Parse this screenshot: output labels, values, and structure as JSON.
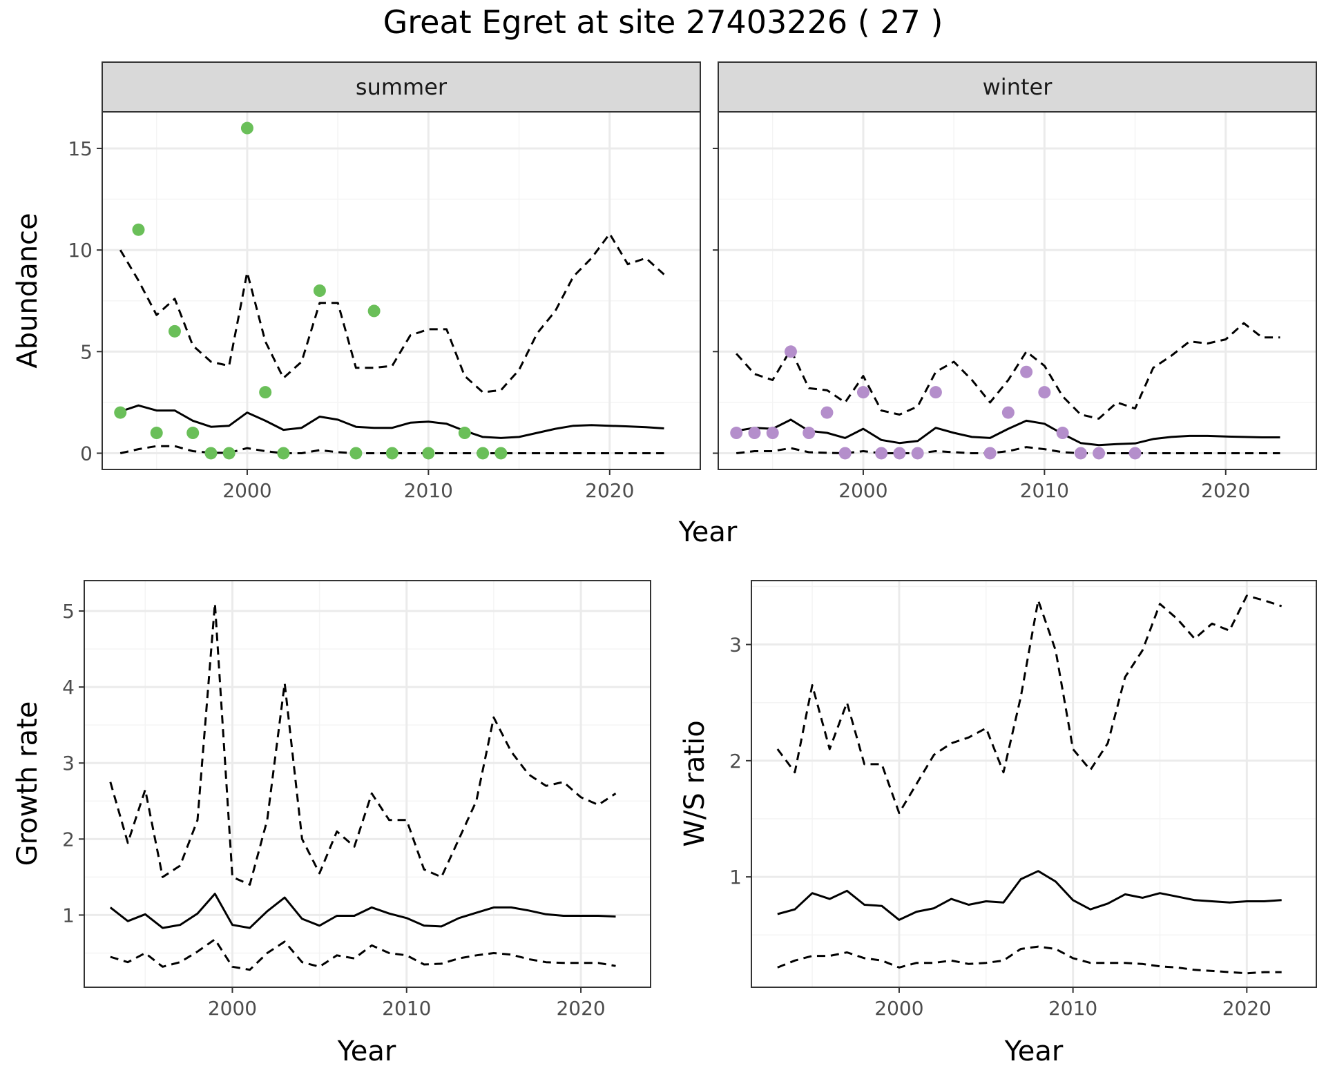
{
  "title": "Great Egret at site 27403226 ( 27 )",
  "colors": {
    "summer_points": "#6abf59",
    "winter_points": "#b48ecb",
    "lines": "#000000",
    "grid_major": "#ebebeb",
    "grid_minor": "#f4f4f4",
    "strip_fill": "#d9d9d9",
    "border": "#333333"
  },
  "chart_data": [
    {
      "type": "scatter",
      "panel": "summer",
      "strip_label": "summer",
      "xlabel": "Year",
      "ylabel": "Abundance",
      "xlim": [
        1992,
        2025
      ],
      "ylim": [
        -0.8,
        16.8
      ],
      "x_ticks": [
        2000,
        2010,
        2020
      ],
      "x_tick_labels": [
        "2000",
        "2010",
        "2020"
      ],
      "y_ticks": [
        0,
        5,
        10,
        15
      ],
      "y_tick_labels": [
        "0",
        "5",
        "10",
        "15"
      ],
      "grid": true,
      "points": {
        "x": [
          1993,
          1994,
          1995,
          1996,
          1997,
          1998,
          1999,
          2000,
          2001,
          2002,
          2004,
          2006,
          2007,
          2008,
          2010,
          2012,
          2013,
          2014
        ],
        "y": [
          2,
          11,
          1,
          6,
          1,
          0,
          0,
          16,
          3,
          0,
          8,
          0,
          7,
          0,
          0,
          1,
          0,
          0
        ]
      },
      "series": [
        {
          "style": "solid",
          "x": [
            1993,
            1994,
            1995,
            1996,
            1997,
            1998,
            1999,
            2000,
            2001,
            2002,
            2003,
            2004,
            2005,
            2006,
            2007,
            2008,
            2009,
            2010,
            2011,
            2012,
            2013,
            2014,
            2015,
            2016,
            2017,
            2018,
            2019,
            2020,
            2021,
            2022,
            2023
          ],
          "y": [
            2.05,
            2.35,
            2.1,
            2.1,
            1.6,
            1.3,
            1.35,
            2.0,
            1.6,
            1.15,
            1.25,
            1.8,
            1.65,
            1.3,
            1.25,
            1.25,
            1.5,
            1.55,
            1.45,
            1.1,
            0.8,
            0.75,
            0.8,
            1.0,
            1.2,
            1.35,
            1.38,
            1.35,
            1.32,
            1.28,
            1.22
          ]
        },
        {
          "style": "dashed",
          "x": [
            1993,
            1994,
            1995,
            1996,
            1997,
            1998,
            1999,
            2000,
            2001,
            2002,
            2003,
            2004,
            2005,
            2006,
            2007,
            2008,
            2009,
            2010,
            2011,
            2012,
            2013,
            2014,
            2015,
            2016,
            2017,
            2018,
            2019,
            2020,
            2021,
            2022,
            2023
          ],
          "y": [
            10.0,
            8.5,
            6.8,
            7.6,
            5.3,
            4.5,
            4.3,
            8.9,
            5.5,
            3.7,
            4.5,
            7.4,
            7.4,
            4.2,
            4.2,
            4.3,
            5.8,
            6.1,
            6.1,
            3.8,
            3.0,
            3.1,
            4.1,
            5.9,
            7.0,
            8.7,
            9.6,
            10.8,
            9.3,
            9.6,
            8.8
          ]
        },
        {
          "style": "dashed",
          "x": [
            1993,
            1994,
            1995,
            1996,
            1997,
            1998,
            1999,
            2000,
            2001,
            2002,
            2003,
            2004,
            2005,
            2006,
            2007,
            2008,
            2009,
            2010,
            2011,
            2012,
            2013,
            2014,
            2015,
            2016,
            2017,
            2018,
            2019,
            2020,
            2021,
            2022,
            2023
          ],
          "y": [
            0.0,
            0.2,
            0.35,
            0.35,
            0.1,
            0.02,
            0.02,
            0.25,
            0.1,
            0.0,
            0.0,
            0.15,
            0.05,
            0.0,
            0.0,
            0.0,
            0.0,
            0.0,
            0.0,
            0.0,
            0.0,
            0.0,
            0.0,
            0.0,
            0.0,
            0.0,
            0.0,
            0.0,
            0.0,
            0.0,
            0.0
          ]
        }
      ]
    },
    {
      "type": "scatter",
      "panel": "winter",
      "strip_label": "winter",
      "xlabel": "Year",
      "ylabel": "Abundance",
      "xlim": [
        1992,
        2025
      ],
      "ylim": [
        -0.8,
        16.8
      ],
      "x_ticks": [
        2000,
        2010,
        2020
      ],
      "x_tick_labels": [
        "2000",
        "2010",
        "2020"
      ],
      "y_ticks": [
        0,
        5,
        10,
        15
      ],
      "grid": true,
      "points": {
        "x": [
          1993,
          1994,
          1995,
          1996,
          1997,
          1998,
          1999,
          2000,
          2001,
          2002,
          2003,
          2004,
          2007,
          2008,
          2009,
          2010,
          2011,
          2012,
          2013,
          2015
        ],
        "y": [
          1,
          1,
          1,
          5,
          1,
          2,
          0,
          3,
          0,
          0,
          0,
          3,
          0,
          2,
          4,
          3,
          1,
          0,
          0,
          0
        ]
      },
      "series": [
        {
          "style": "solid",
          "x": [
            1993,
            1994,
            1995,
            1996,
            1997,
            1998,
            1999,
            2000,
            2001,
            2002,
            2003,
            2004,
            2005,
            2006,
            2007,
            2008,
            2009,
            2010,
            2011,
            2012,
            2013,
            2014,
            2015,
            2016,
            2017,
            2018,
            2019,
            2020,
            2021,
            2022,
            2023
          ],
          "y": [
            1.1,
            1.25,
            1.2,
            1.65,
            1.1,
            1.0,
            0.75,
            1.2,
            0.65,
            0.5,
            0.6,
            1.25,
            1.0,
            0.8,
            0.75,
            1.2,
            1.6,
            1.45,
            0.95,
            0.5,
            0.4,
            0.45,
            0.48,
            0.7,
            0.8,
            0.85,
            0.85,
            0.82,
            0.8,
            0.78,
            0.78
          ]
        },
        {
          "style": "dashed",
          "x": [
            1993,
            1994,
            1995,
            1996,
            1997,
            1998,
            1999,
            2000,
            2001,
            2002,
            2003,
            2004,
            2005,
            2006,
            2007,
            2008,
            2009,
            2010,
            2011,
            2012,
            2013,
            2014,
            2015,
            2016,
            2017,
            2018,
            2019,
            2020,
            2021,
            2022,
            2023
          ],
          "y": [
            4.9,
            3.9,
            3.6,
            5.1,
            3.2,
            3.1,
            2.5,
            3.8,
            2.1,
            1.9,
            2.3,
            4.0,
            4.5,
            3.6,
            2.5,
            3.6,
            5.0,
            4.3,
            2.8,
            1.9,
            1.7,
            2.5,
            2.2,
            4.2,
            4.8,
            5.5,
            5.4,
            5.6,
            6.4,
            5.7,
            5.7
          ]
        },
        {
          "style": "dashed",
          "x": [
            1993,
            1994,
            1995,
            1996,
            1997,
            1998,
            1999,
            2000,
            2001,
            2002,
            2003,
            2004,
            2005,
            2006,
            2007,
            2008,
            2009,
            2010,
            2011,
            2012,
            2013,
            2014,
            2015,
            2016,
            2017,
            2018,
            2019,
            2020,
            2021,
            2022,
            2023
          ],
          "y": [
            0.0,
            0.1,
            0.1,
            0.25,
            0.05,
            0.02,
            0.0,
            0.1,
            0.0,
            0.0,
            0.0,
            0.1,
            0.05,
            0.0,
            0.0,
            0.1,
            0.3,
            0.2,
            0.05,
            0.0,
            0.0,
            0.0,
            0.0,
            0.0,
            0.0,
            0.0,
            0.0,
            0.0,
            0.0,
            0.0,
            0.0
          ]
        }
      ]
    },
    {
      "type": "line",
      "panel": "growth",
      "xlabel": "Year",
      "ylabel": "Growth rate",
      "xlim": [
        1991.5,
        2024
      ],
      "ylim": [
        0.05,
        5.4
      ],
      "x_ticks": [
        2000,
        2010,
        2020
      ],
      "x_tick_labels": [
        "2000",
        "2010",
        "2020"
      ],
      "y_ticks": [
        1,
        2,
        3,
        4,
        5
      ],
      "y_tick_labels": [
        "1",
        "2",
        "3",
        "4",
        "5"
      ],
      "grid": true,
      "series": [
        {
          "style": "solid",
          "x": [
            1993,
            1994,
            1995,
            1996,
            1997,
            1998,
            1999,
            2000,
            2001,
            2002,
            2003,
            2004,
            2005,
            2006,
            2007,
            2008,
            2009,
            2010,
            2011,
            2012,
            2013,
            2014,
            2015,
            2016,
            2017,
            2018,
            2019,
            2020,
            2021,
            2022
          ],
          "y": [
            1.1,
            0.92,
            1.01,
            0.83,
            0.87,
            1.02,
            1.28,
            0.87,
            0.83,
            1.05,
            1.23,
            0.95,
            0.86,
            0.99,
            0.99,
            1.1,
            1.02,
            0.96,
            0.86,
            0.85,
            0.96,
            1.03,
            1.1,
            1.1,
            1.06,
            1.01,
            0.99,
            0.99,
            0.99,
            0.98
          ]
        },
        {
          "style": "dashed",
          "x": [
            1993,
            1994,
            1995,
            1996,
            1997,
            1998,
            1999,
            2000,
            2001,
            2002,
            2003,
            2004,
            2005,
            2006,
            2007,
            2008,
            2009,
            2010,
            2011,
            2012,
            2013,
            2014,
            2015,
            2016,
            2017,
            2018,
            2019,
            2020,
            2021,
            2022
          ],
          "y": [
            2.75,
            1.95,
            2.65,
            1.5,
            1.65,
            2.25,
            5.1,
            1.5,
            1.4,
            2.25,
            4.05,
            2.0,
            1.55,
            2.1,
            1.9,
            2.6,
            2.25,
            2.25,
            1.6,
            1.5,
            2.0,
            2.5,
            3.6,
            3.15,
            2.85,
            2.7,
            2.75,
            2.55,
            2.45,
            2.6
          ]
        },
        {
          "style": "dashed",
          "x": [
            1993,
            1994,
            1995,
            1996,
            1997,
            1998,
            1999,
            2000,
            2001,
            2002,
            2003,
            2004,
            2005,
            2006,
            2007,
            2008,
            2009,
            2010,
            2011,
            2012,
            2013,
            2014,
            2015,
            2016,
            2017,
            2018,
            2019,
            2020,
            2021,
            2022
          ],
          "y": [
            0.45,
            0.38,
            0.5,
            0.32,
            0.38,
            0.52,
            0.68,
            0.32,
            0.28,
            0.5,
            0.65,
            0.38,
            0.32,
            0.47,
            0.43,
            0.6,
            0.5,
            0.47,
            0.35,
            0.36,
            0.43,
            0.47,
            0.5,
            0.48,
            0.42,
            0.38,
            0.37,
            0.37,
            0.37,
            0.33
          ]
        }
      ]
    },
    {
      "type": "line",
      "panel": "ratio",
      "xlabel": "Year",
      "ylabel": "W/S ratio",
      "xlim": [
        1991.5,
        2024
      ],
      "ylim": [
        0.05,
        3.55
      ],
      "x_ticks": [
        2000,
        2010,
        2020
      ],
      "x_tick_labels": [
        "2000",
        "2010",
        "2020"
      ],
      "y_ticks": [
        1,
        2,
        3
      ],
      "y_tick_labels": [
        "1",
        "2",
        "3"
      ],
      "grid": true,
      "series": [
        {
          "style": "solid",
          "x": [
            1993,
            1994,
            1995,
            1996,
            1997,
            1998,
            1999,
            2000,
            2001,
            2002,
            2003,
            2004,
            2005,
            2006,
            2007,
            2008,
            2009,
            2010,
            2011,
            2012,
            2013,
            2014,
            2015,
            2016,
            2017,
            2018,
            2019,
            2020,
            2021,
            2022
          ],
          "y": [
            0.68,
            0.72,
            0.86,
            0.81,
            0.88,
            0.76,
            0.75,
            0.63,
            0.7,
            0.73,
            0.81,
            0.76,
            0.79,
            0.78,
            0.98,
            1.05,
            0.96,
            0.8,
            0.72,
            0.77,
            0.85,
            0.82,
            0.86,
            0.83,
            0.8,
            0.79,
            0.78,
            0.79,
            0.79,
            0.8
          ]
        },
        {
          "style": "dashed",
          "x": [
            1993,
            1994,
            1995,
            1996,
            1997,
            1998,
            1999,
            2000,
            2001,
            2002,
            2003,
            2004,
            2005,
            2006,
            2007,
            2008,
            2009,
            2010,
            2011,
            2012,
            2013,
            2014,
            2015,
            2016,
            2017,
            2018,
            2019,
            2020,
            2021,
            2022
          ],
          "y": [
            2.1,
            1.9,
            2.65,
            2.1,
            2.5,
            1.97,
            1.97,
            1.55,
            1.8,
            2.05,
            2.15,
            2.2,
            2.28,
            1.9,
            2.55,
            3.38,
            2.95,
            2.1,
            1.92,
            2.15,
            2.72,
            2.95,
            3.35,
            3.22,
            3.05,
            3.18,
            3.12,
            3.42,
            3.38,
            3.33
          ]
        },
        {
          "style": "dashed",
          "x": [
            1993,
            1994,
            1995,
            1996,
            1997,
            1998,
            1999,
            2000,
            2001,
            2002,
            2003,
            2004,
            2005,
            2006,
            2007,
            2008,
            2009,
            2010,
            2011,
            2012,
            2013,
            2014,
            2015,
            2016,
            2017,
            2018,
            2019,
            2020,
            2021,
            2022
          ],
          "y": [
            0.22,
            0.28,
            0.32,
            0.32,
            0.35,
            0.3,
            0.28,
            0.22,
            0.26,
            0.26,
            0.28,
            0.25,
            0.26,
            0.28,
            0.38,
            0.4,
            0.38,
            0.3,
            0.26,
            0.26,
            0.26,
            0.25,
            0.23,
            0.22,
            0.2,
            0.19,
            0.18,
            0.17,
            0.18,
            0.18
          ]
        }
      ]
    }
  ]
}
